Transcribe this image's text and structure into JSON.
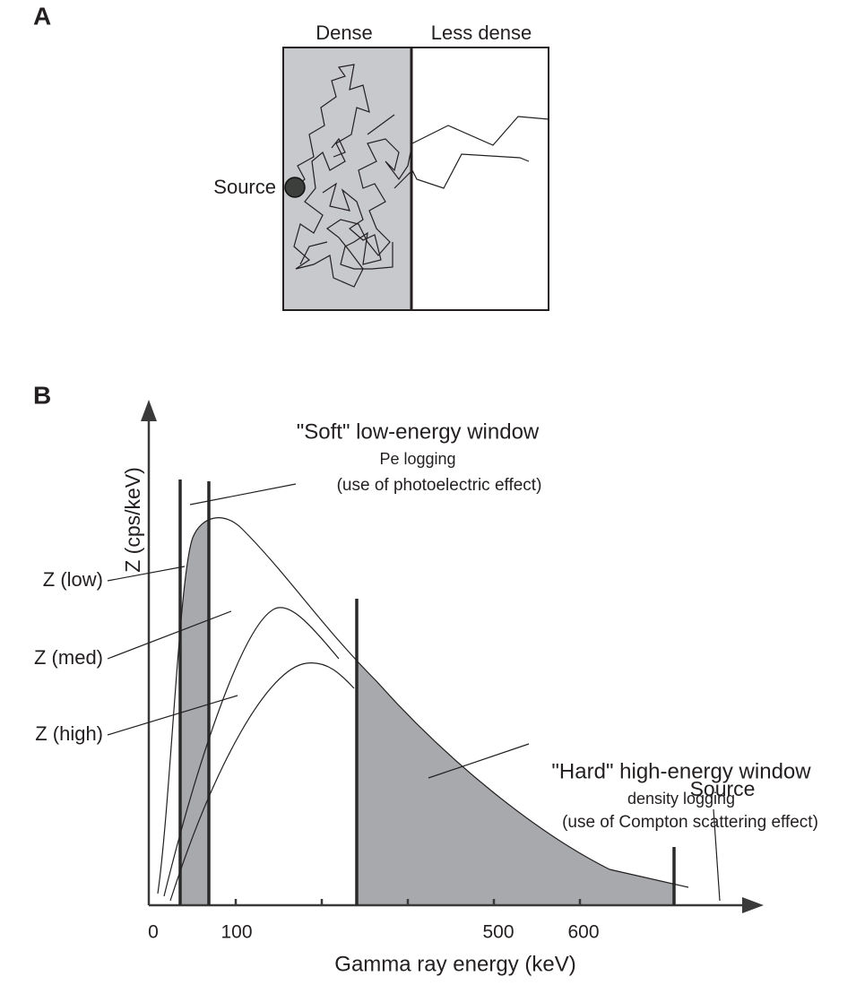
{
  "panel_a": {
    "label": "A",
    "dense_label": "Dense",
    "less_dense_label": "Less dense",
    "source_label": "Source"
  },
  "panel_b": {
    "label": "B",
    "y_axis_label": "Z (cps/keV)",
    "x_axis_label": "Gamma ray energy (keV)",
    "x_tick_labels": [
      "0",
      "100",
      "500",
      "600"
    ],
    "soft_window": {
      "title": "\"Soft\" low-energy window",
      "subtitle": "Pe logging",
      "note": "(use of photoelectric effect)"
    },
    "hard_window": {
      "title": "\"Hard\" high-energy window",
      "subtitle": "density logging",
      "note": "(use of Compton scattering effect)"
    },
    "curve_labels": [
      "Z (low)",
      "Z (med)",
      "Z (high)"
    ],
    "source_label": "Source"
  }
}
